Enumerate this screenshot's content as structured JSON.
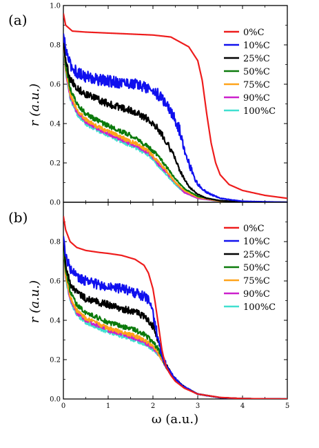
{
  "chart_data": [
    {
      "type": "line",
      "panel_label": "(a)",
      "xlabel": "",
      "ylabel": "r (a.u.)",
      "xlim": [
        0,
        5
      ],
      "ylim": [
        0,
        1.0
      ],
      "y_ticks": [
        "0.0",
        "0.2",
        "0.4",
        "0.6",
        "0.8",
        "1.0"
      ],
      "x_ticks": [],
      "grid": false,
      "legend_position": "top-right",
      "series": [
        {
          "name": "0%C",
          "color": "#ee1c1c",
          "noise": 0,
          "x": [
            0,
            0.05,
            0.2,
            0.5,
            1.0,
            1.5,
            2.0,
            2.4,
            2.8,
            3.0,
            3.1,
            3.2,
            3.3,
            3.4,
            3.5,
            3.7,
            4.0,
            4.5,
            5.0
          ],
          "y": [
            0.96,
            0.9,
            0.87,
            0.865,
            0.86,
            0.855,
            0.85,
            0.84,
            0.79,
            0.72,
            0.62,
            0.45,
            0.3,
            0.2,
            0.14,
            0.09,
            0.06,
            0.035,
            0.02
          ]
        },
        {
          "name": "10%C",
          "color": "#1010ee",
          "noise": 0.03,
          "x": [
            0,
            0.05,
            0.15,
            0.3,
            0.5,
            0.8,
            1.0,
            1.3,
            1.6,
            1.9,
            2.1,
            2.3,
            2.5,
            2.6,
            2.7,
            2.8,
            2.9,
            3.0,
            3.2,
            3.5,
            4.0,
            5.0
          ],
          "y": [
            0.85,
            0.78,
            0.7,
            0.66,
            0.64,
            0.62,
            0.615,
            0.61,
            0.6,
            0.58,
            0.55,
            0.5,
            0.42,
            0.36,
            0.28,
            0.2,
            0.14,
            0.09,
            0.05,
            0.02,
            0.005,
            0.0
          ]
        },
        {
          "name": "25%C",
          "color": "#000000",
          "noise": 0.018,
          "x": [
            0,
            0.05,
            0.15,
            0.3,
            0.5,
            0.8,
            1.0,
            1.3,
            1.6,
            1.9,
            2.1,
            2.3,
            2.5,
            2.6,
            2.7,
            2.8,
            3.0,
            3.2,
            3.5,
            4.0,
            5.0
          ],
          "y": [
            0.84,
            0.72,
            0.63,
            0.58,
            0.55,
            0.52,
            0.5,
            0.48,
            0.46,
            0.42,
            0.38,
            0.31,
            0.22,
            0.16,
            0.12,
            0.08,
            0.04,
            0.02,
            0.008,
            0.002,
            0.0
          ]
        },
        {
          "name": "50%C",
          "color": "#0b7a0b",
          "noise": 0.012,
          "x": [
            0,
            0.05,
            0.15,
            0.3,
            0.5,
            0.8,
            1.0,
            1.3,
            1.6,
            1.9,
            2.1,
            2.3,
            2.5,
            2.7,
            3.0,
            3.5,
            4.0,
            5.0
          ],
          "y": [
            0.83,
            0.7,
            0.58,
            0.5,
            0.45,
            0.41,
            0.39,
            0.36,
            0.33,
            0.28,
            0.24,
            0.18,
            0.12,
            0.07,
            0.03,
            0.008,
            0.0,
            0.0
          ]
        },
        {
          "name": "75%C",
          "color": "#ffa31a",
          "noise": 0.01,
          "x": [
            0,
            0.05,
            0.15,
            0.3,
            0.5,
            0.8,
            1.0,
            1.3,
            1.6,
            1.9,
            2.1,
            2.3,
            2.5,
            2.7,
            3.0,
            3.5,
            4.0,
            5.0
          ],
          "y": [
            0.82,
            0.68,
            0.55,
            0.47,
            0.42,
            0.38,
            0.36,
            0.33,
            0.3,
            0.26,
            0.21,
            0.16,
            0.1,
            0.06,
            0.025,
            0.005,
            0.0,
            0.0
          ]
        },
        {
          "name": "90%C",
          "color": "#cc1fcc",
          "noise": 0.01,
          "x": [
            0,
            0.05,
            0.15,
            0.3,
            0.5,
            0.8,
            1.0,
            1.3,
            1.6,
            1.9,
            2.1,
            2.3,
            2.5,
            2.7,
            3.0,
            3.5,
            4.0,
            5.0
          ],
          "y": [
            0.82,
            0.67,
            0.54,
            0.46,
            0.41,
            0.37,
            0.35,
            0.32,
            0.29,
            0.25,
            0.2,
            0.15,
            0.1,
            0.05,
            0.02,
            0.005,
            0.0,
            0.0
          ]
        },
        {
          "name": "100%C",
          "color": "#40e0d0",
          "noise": 0.01,
          "x": [
            0,
            0.05,
            0.15,
            0.3,
            0.5,
            0.8,
            1.0,
            1.3,
            1.6,
            1.9,
            2.1,
            2.3,
            2.5,
            2.7,
            3.0,
            3.5,
            4.0,
            5.0
          ],
          "y": [
            0.81,
            0.66,
            0.53,
            0.45,
            0.4,
            0.36,
            0.34,
            0.31,
            0.28,
            0.24,
            0.19,
            0.14,
            0.09,
            0.05,
            0.02,
            0.004,
            0.0,
            0.0
          ]
        }
      ]
    },
    {
      "type": "line",
      "panel_label": "(b)",
      "xlabel": "ω (a.u.)",
      "ylabel": "r (a.u.)",
      "xlim": [
        0,
        5
      ],
      "ylim": [
        0,
        1.0
      ],
      "y_ticks": [
        "0.0",
        "0.2",
        "0.4",
        "0.6",
        "0.8"
      ],
      "x_ticks": [
        "0",
        "1",
        "2",
        "3",
        "4",
        "5"
      ],
      "grid": false,
      "legend_position": "top-right",
      "series": [
        {
          "name": "0%C",
          "color": "#ee1c1c",
          "noise": 0,
          "x": [
            0,
            0.05,
            0.15,
            0.3,
            0.5,
            0.8,
            1.0,
            1.3,
            1.6,
            1.8,
            1.9,
            2.0,
            2.05,
            2.1,
            2.15,
            2.2,
            2.25,
            2.3,
            2.4,
            2.5,
            2.7,
            3.0,
            3.5,
            4.0,
            5.0
          ],
          "y": [
            0.93,
            0.86,
            0.8,
            0.77,
            0.755,
            0.745,
            0.74,
            0.73,
            0.71,
            0.68,
            0.64,
            0.56,
            0.49,
            0.41,
            0.33,
            0.25,
            0.2,
            0.16,
            0.12,
            0.09,
            0.055,
            0.025,
            0.008,
            0.002,
            0.0
          ]
        },
        {
          "name": "10%C",
          "color": "#1010ee",
          "noise": 0.025,
          "x": [
            0,
            0.05,
            0.15,
            0.3,
            0.5,
            0.8,
            1.0,
            1.3,
            1.6,
            1.8,
            1.9,
            2.0,
            2.1,
            2.2,
            2.3,
            2.4,
            2.5,
            2.7,
            3.0,
            3.5,
            4.0,
            5.0
          ],
          "y": [
            0.82,
            0.73,
            0.66,
            0.62,
            0.6,
            0.58,
            0.57,
            0.56,
            0.54,
            0.52,
            0.5,
            0.44,
            0.32,
            0.22,
            0.17,
            0.13,
            0.1,
            0.06,
            0.025,
            0.007,
            0.002,
            0.0
          ]
        },
        {
          "name": "25%C",
          "color": "#000000",
          "noise": 0.018,
          "x": [
            0,
            0.05,
            0.15,
            0.3,
            0.5,
            0.8,
            1.0,
            1.3,
            1.6,
            1.8,
            2.0,
            2.1,
            2.2,
            2.3,
            2.4,
            2.5,
            2.7,
            3.0,
            3.5,
            4.0,
            5.0
          ],
          "y": [
            0.8,
            0.68,
            0.59,
            0.54,
            0.51,
            0.49,
            0.48,
            0.46,
            0.44,
            0.42,
            0.37,
            0.31,
            0.23,
            0.17,
            0.13,
            0.1,
            0.06,
            0.025,
            0.007,
            0.002,
            0.0
          ]
        },
        {
          "name": "50%C",
          "color": "#0b7a0b",
          "noise": 0.012,
          "x": [
            0,
            0.05,
            0.15,
            0.3,
            0.5,
            0.8,
            1.0,
            1.3,
            1.6,
            1.8,
            2.0,
            2.1,
            2.2,
            2.3,
            2.4,
            2.5,
            2.7,
            3.0,
            3.5,
            4.0,
            5.0
          ],
          "y": [
            0.79,
            0.65,
            0.55,
            0.48,
            0.44,
            0.41,
            0.39,
            0.37,
            0.35,
            0.33,
            0.29,
            0.26,
            0.21,
            0.16,
            0.13,
            0.1,
            0.06,
            0.025,
            0.007,
            0.002,
            0.0
          ]
        },
        {
          "name": "75%C",
          "color": "#ffa31a",
          "noise": 0.01,
          "x": [
            0,
            0.05,
            0.15,
            0.3,
            0.5,
            0.8,
            1.0,
            1.3,
            1.6,
            1.8,
            2.0,
            2.1,
            2.2,
            2.3,
            2.4,
            2.5,
            2.7,
            3.0,
            3.5,
            4.0,
            5.0
          ],
          "y": [
            0.79,
            0.63,
            0.52,
            0.45,
            0.41,
            0.38,
            0.36,
            0.34,
            0.32,
            0.3,
            0.27,
            0.24,
            0.2,
            0.16,
            0.13,
            0.1,
            0.06,
            0.025,
            0.007,
            0.002,
            0.0
          ]
        },
        {
          "name": "90%C",
          "color": "#cc1fcc",
          "noise": 0.01,
          "x": [
            0,
            0.05,
            0.15,
            0.3,
            0.5,
            0.8,
            1.0,
            1.3,
            1.6,
            1.8,
            2.0,
            2.1,
            2.2,
            2.3,
            2.4,
            2.5,
            2.7,
            3.0,
            3.5,
            4.0,
            5.0
          ],
          "y": [
            0.78,
            0.62,
            0.51,
            0.44,
            0.4,
            0.37,
            0.35,
            0.33,
            0.31,
            0.29,
            0.26,
            0.235,
            0.2,
            0.16,
            0.13,
            0.1,
            0.06,
            0.025,
            0.007,
            0.002,
            0.0
          ]
        },
        {
          "name": "100%C",
          "color": "#40e0d0",
          "noise": 0.01,
          "x": [
            0,
            0.05,
            0.15,
            0.3,
            0.5,
            0.8,
            1.0,
            1.3,
            1.6,
            1.8,
            2.0,
            2.1,
            2.2,
            2.3,
            2.4,
            2.5,
            2.7,
            3.0,
            3.5,
            4.0,
            5.0
          ],
          "y": [
            0.78,
            0.61,
            0.5,
            0.43,
            0.39,
            0.36,
            0.34,
            0.32,
            0.3,
            0.28,
            0.25,
            0.23,
            0.2,
            0.16,
            0.13,
            0.1,
            0.06,
            0.025,
            0.007,
            0.002,
            0.0
          ]
        }
      ]
    }
  ]
}
